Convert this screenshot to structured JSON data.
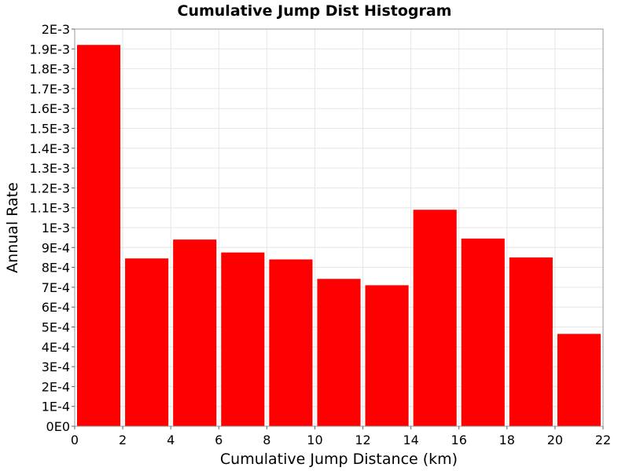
{
  "chart_data": {
    "type": "bar",
    "title": "Cumulative Jump Dist Histogram",
    "xlabel": "Cumulative Jump Distance (km)",
    "ylabel": "Annual Rate",
    "bin_width": 2,
    "x_bin_starts": [
      0,
      2,
      4,
      6,
      8,
      10,
      12,
      14,
      16,
      18,
      20
    ],
    "values": [
      0.00192,
      0.000845,
      0.00094,
      0.000875,
      0.00084,
      0.000742,
      0.00071,
      0.00109,
      0.000945,
      0.00085,
      0.000465
    ],
    "xlim": [
      0,
      22
    ],
    "ylim": [
      0,
      0.002
    ],
    "x_ticks": [
      0,
      2,
      4,
      6,
      8,
      10,
      12,
      14,
      16,
      18,
      20,
      22
    ],
    "x_tick_labels": [
      "0",
      "2",
      "4",
      "6",
      "8",
      "10",
      "12",
      "14",
      "16",
      "18",
      "20",
      "22"
    ],
    "y_ticks": [
      0,
      0.0001,
      0.0002,
      0.0003,
      0.0004,
      0.0005,
      0.0006,
      0.0007,
      0.0008,
      0.0009,
      0.001,
      0.0011,
      0.0012,
      0.0013,
      0.0014,
      0.0015,
      0.0016,
      0.0017,
      0.0018,
      0.0019,
      0.002
    ],
    "y_tick_labels": [
      "0E0",
      "1E-4",
      "2E-4",
      "3E-4",
      "4E-4",
      "5E-4",
      "6E-4",
      "7E-4",
      "8E-4",
      "9E-4",
      "1E-3",
      "1.1E-3",
      "1.2E-3",
      "1.3E-3",
      "1.4E-3",
      "1.5E-3",
      "1.6E-3",
      "1.7E-3",
      "1.8E-3",
      "1.9E-3",
      "2E-3"
    ],
    "grid": true,
    "colors": {
      "bar": "#ff0000",
      "grid": "#e6e6e6",
      "frame": "#999999"
    }
  }
}
